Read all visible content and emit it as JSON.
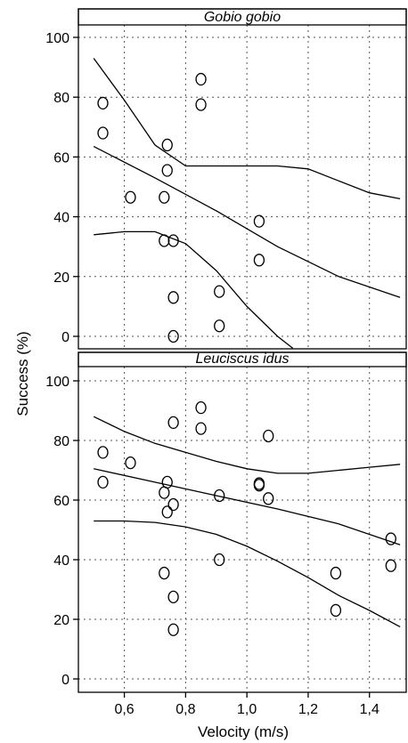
{
  "chart_data": {
    "type": "scatter",
    "xlabel": "Velocity (m/s)",
    "ylabel": "Success (%)",
    "xlim": [
      0.45,
      1.52
    ],
    "x_ticks": [
      "0,6",
      "0,8",
      "1,0",
      "1,2",
      "1,4"
    ],
    "x_tick_values": [
      0.6,
      0.8,
      1.0,
      1.2,
      1.4
    ],
    "y_ticks": [
      "0",
      "20",
      "40",
      "60",
      "80",
      "100"
    ],
    "y_tick_values": [
      0,
      20,
      40,
      60,
      80,
      100
    ],
    "grid": true,
    "panels": [
      {
        "title": "Gobio gobio",
        "ylim": [
          -2,
          105
        ],
        "points": [
          [
            0.53,
            78
          ],
          [
            0.53,
            68
          ],
          [
            0.62,
            46.5
          ],
          [
            0.73,
            46.5
          ],
          [
            0.74,
            64
          ],
          [
            0.74,
            55.5
          ],
          [
            0.73,
            32
          ],
          [
            0.76,
            32
          ],
          [
            0.76,
            13
          ],
          [
            0.76,
            0
          ],
          [
            0.85,
            86
          ],
          [
            0.85,
            77.5
          ],
          [
            0.91,
            15
          ],
          [
            0.91,
            3.5
          ],
          [
            1.04,
            38.5
          ],
          [
            1.04,
            25.5
          ]
        ],
        "fit": [
          [
            0.5,
            63.5
          ],
          [
            0.7,
            53
          ],
          [
            0.9,
            42
          ],
          [
            1.1,
            30
          ],
          [
            1.3,
            20
          ],
          [
            1.5,
            13
          ]
        ],
        "upper_band": [
          [
            0.5,
            93
          ],
          [
            0.6,
            79
          ],
          [
            0.7,
            64
          ],
          [
            0.8,
            57
          ],
          [
            0.9,
            57
          ],
          [
            1.1,
            57
          ],
          [
            1.2,
            56
          ],
          [
            1.3,
            52
          ],
          [
            1.4,
            48
          ],
          [
            1.5,
            46
          ]
        ],
        "lower_band": [
          [
            0.5,
            34
          ],
          [
            0.6,
            35
          ],
          [
            0.7,
            35
          ],
          [
            0.8,
            31
          ],
          [
            0.9,
            22
          ],
          [
            1.0,
            10
          ],
          [
            1.1,
            0
          ],
          [
            1.15,
            -4
          ]
        ]
      },
      {
        "title": "Leuciscus idus",
        "ylim": [
          -2,
          105
        ],
        "points": [
          [
            0.53,
            76
          ],
          [
            0.53,
            66
          ],
          [
            0.62,
            72.5
          ],
          [
            0.73,
            62.5
          ],
          [
            0.74,
            66
          ],
          [
            0.74,
            56
          ],
          [
            0.76,
            58.5
          ],
          [
            0.76,
            86
          ],
          [
            0.73,
            35.5
          ],
          [
            0.76,
            27.5
          ],
          [
            0.76,
            16.5
          ],
          [
            0.85,
            91
          ],
          [
            0.85,
            84
          ],
          [
            0.91,
            61.5
          ],
          [
            0.91,
            40
          ],
          [
            1.04,
            65.5
          ],
          [
            1.04,
            65
          ],
          [
            1.07,
            81.5
          ],
          [
            1.07,
            60.5
          ],
          [
            1.29,
            35.5
          ],
          [
            1.29,
            23
          ],
          [
            1.47,
            47
          ],
          [
            1.47,
            38
          ]
        ],
        "fit": [
          [
            0.5,
            70.5
          ],
          [
            0.7,
            66
          ],
          [
            0.9,
            61.5
          ],
          [
            1.1,
            57
          ],
          [
            1.3,
            52
          ],
          [
            1.5,
            45
          ]
        ],
        "upper_band": [
          [
            0.5,
            88
          ],
          [
            0.6,
            83
          ],
          [
            0.7,
            79
          ],
          [
            0.8,
            76
          ],
          [
            0.9,
            73
          ],
          [
            1.0,
            70.5
          ],
          [
            1.1,
            69
          ],
          [
            1.2,
            69
          ],
          [
            1.3,
            70
          ],
          [
            1.4,
            71
          ],
          [
            1.5,
            72
          ]
        ],
        "lower_band": [
          [
            0.5,
            53
          ],
          [
            0.6,
            53
          ],
          [
            0.7,
            52.5
          ],
          [
            0.8,
            51
          ],
          [
            0.9,
            48.5
          ],
          [
            1.0,
            44.5
          ],
          [
            1.1,
            39.5
          ],
          [
            1.2,
            34
          ],
          [
            1.3,
            28
          ],
          [
            1.4,
            23
          ],
          [
            1.5,
            17.5
          ]
        ]
      }
    ]
  }
}
